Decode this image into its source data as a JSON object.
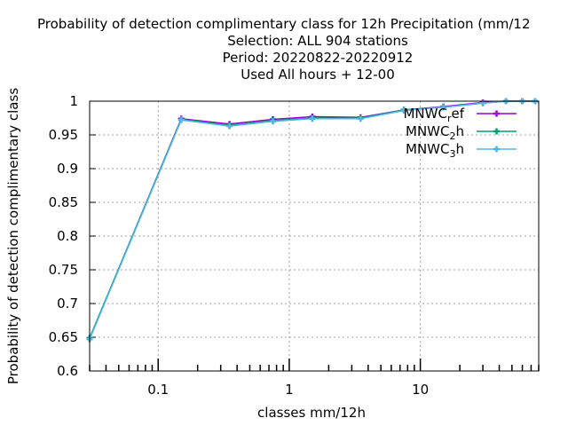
{
  "chart_data": {
    "type": "line",
    "title_lines": [
      "Probability of detection complimentary class  for 12h Precipitation (mm/12",
      "Selection: ALL    904 stations",
      "Period: 20220822-20220912",
      "Used  All hours  + 12-00"
    ],
    "xlabel": "classes mm/12h",
    "ylabel": "Probability of detection complimentary class",
    "x_scale": "log",
    "xlim": [
      0.03,
      80
    ],
    "ylim": [
      0.6,
      1.0
    ],
    "y_ticks": [
      0.6,
      0.65,
      0.7,
      0.75,
      0.8,
      0.85,
      0.9,
      0.95,
      1.0
    ],
    "y_tick_labels": [
      "0.6",
      "0.65",
      "0.7",
      "0.75",
      "0.8",
      "0.85",
      "0.9",
      "0.95",
      "1"
    ],
    "x_ticks": [
      0.1,
      1,
      10
    ],
    "x_tick_labels": [
      "0.1",
      "1",
      "10"
    ],
    "grid": true,
    "legend_position": "top-right",
    "x": [
      0.03,
      0.15,
      0.35,
      0.75,
      1.5,
      3.5,
      7.5,
      15,
      30,
      45,
      60,
      75
    ],
    "series": [
      {
        "name": "MNWC_ref",
        "legend_text": "MNWCref",
        "color": "#9400d3",
        "values": [
          0.648,
          0.974,
          0.966,
          0.973,
          0.977,
          0.976,
          0.987,
          0.992,
          0.998,
          1.0,
          1.0,
          1.0
        ]
      },
      {
        "name": "MNWC_2h",
        "legend_text": "MNWC2h",
        "color": "#009e73",
        "values": [
          0.649,
          0.973,
          0.964,
          0.971,
          0.975,
          0.975,
          0.987,
          0.991,
          0.997,
          1.0,
          1.0,
          1.0
        ]
      },
      {
        "name": "MNWC_3h",
        "legend_text": "MNWC3h",
        "color": "#56b4e9",
        "values": [
          0.647,
          0.972,
          0.963,
          0.97,
          0.974,
          0.974,
          0.986,
          0.991,
          0.997,
          1.0,
          1.0,
          1.0
        ]
      }
    ],
    "legend_parts": [
      {
        "base": "MNWC",
        "sub": "r",
        "tail": "ef"
      },
      {
        "base": "MNWC",
        "sub": "2",
        "tail": "h"
      },
      {
        "base": "MNWC",
        "sub": "3",
        "tail": "h"
      }
    ]
  }
}
